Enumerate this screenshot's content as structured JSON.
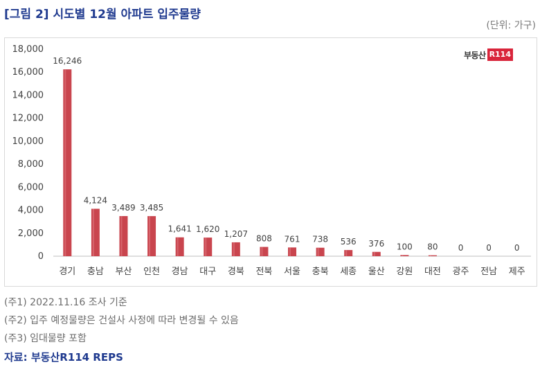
{
  "title": "[그림 2] 시도별 12월 아파트 입주물량",
  "unit": "(단위: 가구)",
  "logo": {
    "text": "부동산",
    "box": "R114",
    "color": "#d9253b"
  },
  "notes": [
    "(주1) 2022.11.16 조사 기준",
    "(주2) 입주 예정물량은 건설사 사정에 따라 변경될 수 있음",
    "(주3) 임대물량 포함"
  ],
  "source": "자료: 부동산R114 REPS",
  "colors": {
    "title": "#1f3a8f",
    "bar": "#c9454e",
    "bar_highlight": "#e07a80",
    "axis": "#bfbfbf"
  },
  "chart_data": {
    "type": "bar",
    "categories": [
      "경기",
      "충남",
      "부산",
      "인천",
      "경남",
      "대구",
      "경북",
      "전북",
      "서울",
      "충북",
      "세종",
      "울산",
      "강원",
      "대전",
      "광주",
      "전남",
      "제주"
    ],
    "values": [
      16246,
      4124,
      3489,
      3485,
      1641,
      1620,
      1207,
      808,
      761,
      738,
      536,
      376,
      100,
      80,
      0,
      0,
      0
    ],
    "value_labels": [
      "16,246",
      "4,124",
      "3,489",
      "3,485",
      "1,641",
      "1,620",
      "1,207",
      "808",
      "761",
      "738",
      "536",
      "376",
      "100",
      "80",
      "0",
      "0",
      "0"
    ],
    "ylim": [
      0,
      18000
    ],
    "yticks": [
      0,
      2000,
      4000,
      6000,
      8000,
      10000,
      12000,
      14000,
      16000,
      18000
    ],
    "ytick_labels": [
      "0",
      "2,000",
      "4,000",
      "6,000",
      "8,000",
      "10,000",
      "12,000",
      "14,000",
      "16,000",
      "18,000"
    ],
    "grid": false,
    "legend": "none",
    "xlabel": "",
    "ylabel": ""
  }
}
